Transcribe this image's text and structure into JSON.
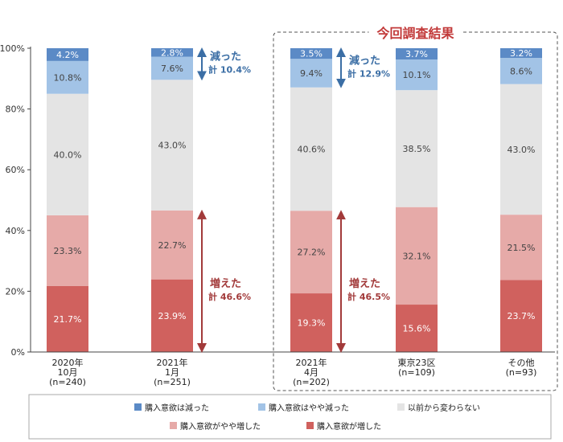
{
  "chart_data": {
    "type": "bar",
    "stacked": true,
    "orientation": "vertical",
    "ylim": [
      0,
      100
    ],
    "y_ticks": [
      "0%",
      "20%",
      "40%",
      "60%",
      "80%",
      "100%"
    ],
    "categories": [
      {
        "lines": [
          "2020年",
          "10月",
          "(n=240)"
        ]
      },
      {
        "lines": [
          "2021年",
          "1月",
          "(n=251)"
        ]
      },
      {
        "lines": [
          "2021年",
          "4月",
          "(n=202)"
        ]
      },
      {
        "lines": [
          "東京23区",
          "(n=109)"
        ]
      },
      {
        "lines": [
          "その他",
          "(n=93)"
        ]
      }
    ],
    "series": [
      {
        "name": "購入意欲が増した",
        "color": "#d0615e",
        "values": [
          21.7,
          23.9,
          19.3,
          15.6,
          23.7
        ],
        "labels": [
          "21.7%",
          "23.9%",
          "19.3%",
          "15.6%",
          "23.7%"
        ]
      },
      {
        "name": "購入意欲がやや増した",
        "color": "#e6aaa8",
        "values": [
          23.3,
          22.7,
          27.2,
          32.1,
          21.5
        ],
        "labels": [
          "23.3%",
          "22.7%",
          "27.2%",
          "32.1%",
          "21.5%"
        ]
      },
      {
        "name": "以前から変わらない",
        "color": "#e4e4e4",
        "values": [
          40.0,
          43.0,
          40.6,
          38.5,
          43.0
        ],
        "labels": [
          "40.0%",
          "43.0%",
          "40.6%",
          "38.5%",
          "43.0%"
        ]
      },
      {
        "name": "購入意欲はやや減った",
        "color": "#a2c3e6",
        "values": [
          10.8,
          7.6,
          9.4,
          10.1,
          8.6
        ],
        "labels": [
          "10.8%",
          "7.6%",
          "9.4%",
          "10.1%",
          "8.6%"
        ]
      },
      {
        "name": "購入意欲は減った",
        "color": "#5b8ac6",
        "values": [
          4.2,
          2.8,
          3.5,
          3.7,
          3.2
        ],
        "labels": [
          "4.2%",
          "2.8%",
          "3.5%",
          "3.7%",
          "3.2%"
        ]
      }
    ],
    "legend": {
      "placement": "bottom",
      "order": [
        "購入意欲は減った",
        "購入意欲はやや減った",
        "以前から変わらない",
        "購入意欲がやや増した",
        "購入意欲が増した"
      ]
    },
    "highlight": {
      "label": "今回調査結果",
      "from_category": 2,
      "to_category": 4
    },
    "annotations": [
      {
        "category": 1,
        "kind": "decrease",
        "title": "減った",
        "total": "計 10.4%",
        "color": "#3b6ea5"
      },
      {
        "category": 1,
        "kind": "increase",
        "title": "増えた",
        "total": "計 46.6%",
        "color": "#a23a3a"
      },
      {
        "category": 2,
        "kind": "decrease",
        "title": "減った",
        "total": "計 12.9%",
        "color": "#3b6ea5"
      },
      {
        "category": 2,
        "kind": "increase",
        "title": "増えた",
        "total": "計 46.5%",
        "color": "#a23a3a"
      }
    ],
    "colors": {
      "highlight_label": "#c23a3a",
      "axis": "#444444",
      "highlight_box": "#555555"
    }
  }
}
